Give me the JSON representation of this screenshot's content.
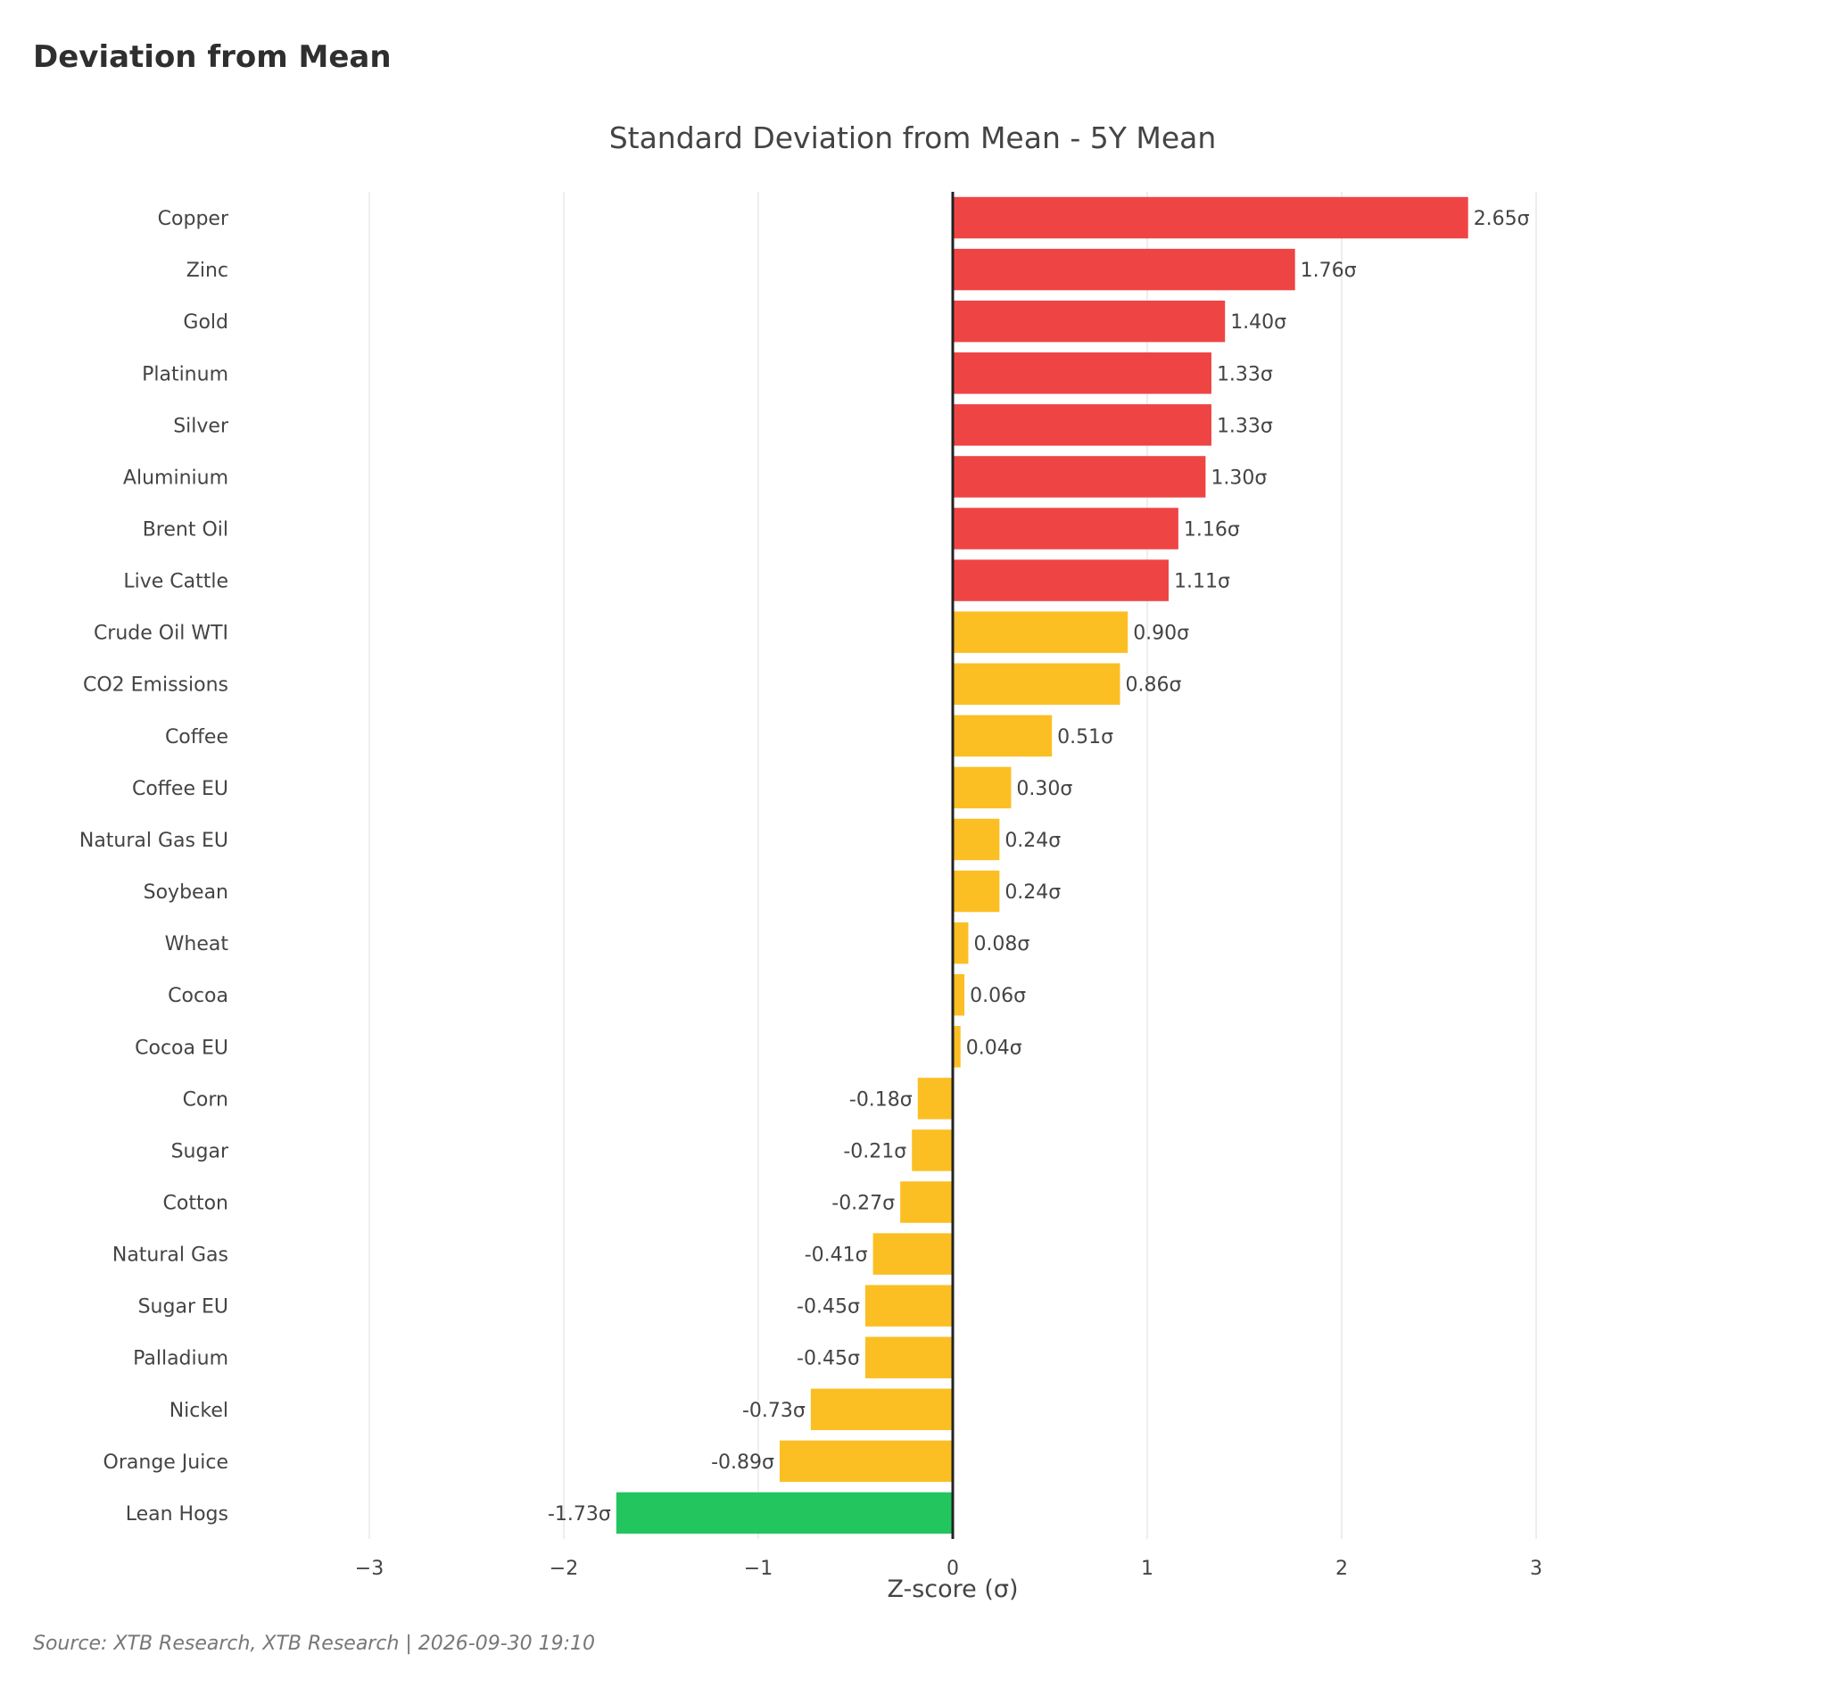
{
  "page": {
    "heading": "Deviation from Mean",
    "source": "Source: XTB Research, XTB Research | 2026-09-30 19:10"
  },
  "colors": {
    "high": "#ef4444",
    "mid": "#fbbf24",
    "low": "#22c55e",
    "grid": "#e8e8e8",
    "zero_line": "#222222"
  },
  "chart_data": {
    "type": "bar",
    "orientation": "horizontal",
    "title": "Standard Deviation from Mean - 5Y Mean",
    "xlabel": "Z-score (σ)",
    "ylabel": "",
    "xlim": [
      -3,
      3
    ],
    "xticks": [
      "−3",
      "−2",
      "−1",
      "0",
      "1",
      "2",
      "3"
    ],
    "grid": true,
    "legend": "none",
    "categories": [
      "Copper",
      "Zinc",
      "Gold",
      "Platinum",
      "Silver",
      "Aluminium",
      "Brent Oil",
      "Live Cattle",
      "Crude Oil WTI",
      "CO2 Emissions",
      "Coffee",
      "Coffee EU",
      "Natural Gas EU",
      "Soybean",
      "Wheat",
      "Cocoa",
      "Cocoa EU",
      "Corn",
      "Sugar",
      "Cotton",
      "Natural Gas",
      "Sugar EU",
      "Palladium",
      "Nickel",
      "Orange Juice",
      "Lean Hogs"
    ],
    "values": [
      2.65,
      1.76,
      1.4,
      1.33,
      1.33,
      1.3,
      1.16,
      1.11,
      0.9,
      0.86,
      0.51,
      0.3,
      0.24,
      0.24,
      0.08,
      0.06,
      0.04,
      -0.18,
      -0.21,
      -0.27,
      -0.41,
      -0.45,
      -0.45,
      -0.73,
      -0.89,
      -1.73
    ],
    "labels": [
      "2.65σ",
      "1.76σ",
      "1.40σ",
      "1.33σ",
      "1.33σ",
      "1.30σ",
      "1.16σ",
      "1.11σ",
      "0.90σ",
      "0.86σ",
      "0.51σ",
      "0.30σ",
      "0.24σ",
      "0.24σ",
      "0.08σ",
      "0.06σ",
      "0.04σ",
      "-0.18σ",
      "-0.21σ",
      "-0.27σ",
      "-0.41σ",
      "-0.45σ",
      "-0.45σ",
      "-0.73σ",
      "-0.89σ",
      "-1.73σ"
    ],
    "bar_colors": [
      "#ef4444",
      "#ef4444",
      "#ef4444",
      "#ef4444",
      "#ef4444",
      "#ef4444",
      "#ef4444",
      "#ef4444",
      "#fbbf24",
      "#fbbf24",
      "#fbbf24",
      "#fbbf24",
      "#fbbf24",
      "#fbbf24",
      "#fbbf24",
      "#fbbf24",
      "#fbbf24",
      "#fbbf24",
      "#fbbf24",
      "#fbbf24",
      "#fbbf24",
      "#fbbf24",
      "#fbbf24",
      "#fbbf24",
      "#fbbf24",
      "#22c55e"
    ]
  }
}
